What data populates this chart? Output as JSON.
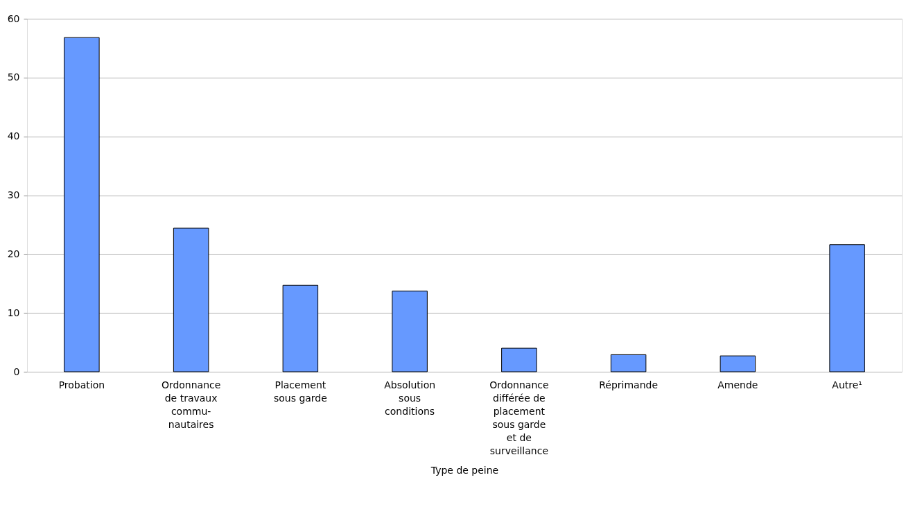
{
  "chart_data": {
    "type": "bar",
    "xlabel": "Type de peine",
    "categories": [
      "Probation",
      "Ordonnance\nde travaux\ncommu-\nnautaires",
      "Placement\nsous garde",
      "Absolution\nsous\nconditions",
      "Ordonnance\ndifférée de\nplacement\nsous garde\net de\nsurveillance",
      "Réprimande",
      "Amende",
      "Autre¹"
    ],
    "values": [
      56.8,
      24.4,
      14.7,
      13.7,
      4.0,
      2.9,
      2.7,
      21.6
    ],
    "color": "#6699ff",
    "ylim": [
      0,
      60
    ],
    "yticks": [
      0,
      10,
      20,
      30,
      40,
      50,
      60
    ],
    "grid": "y"
  }
}
